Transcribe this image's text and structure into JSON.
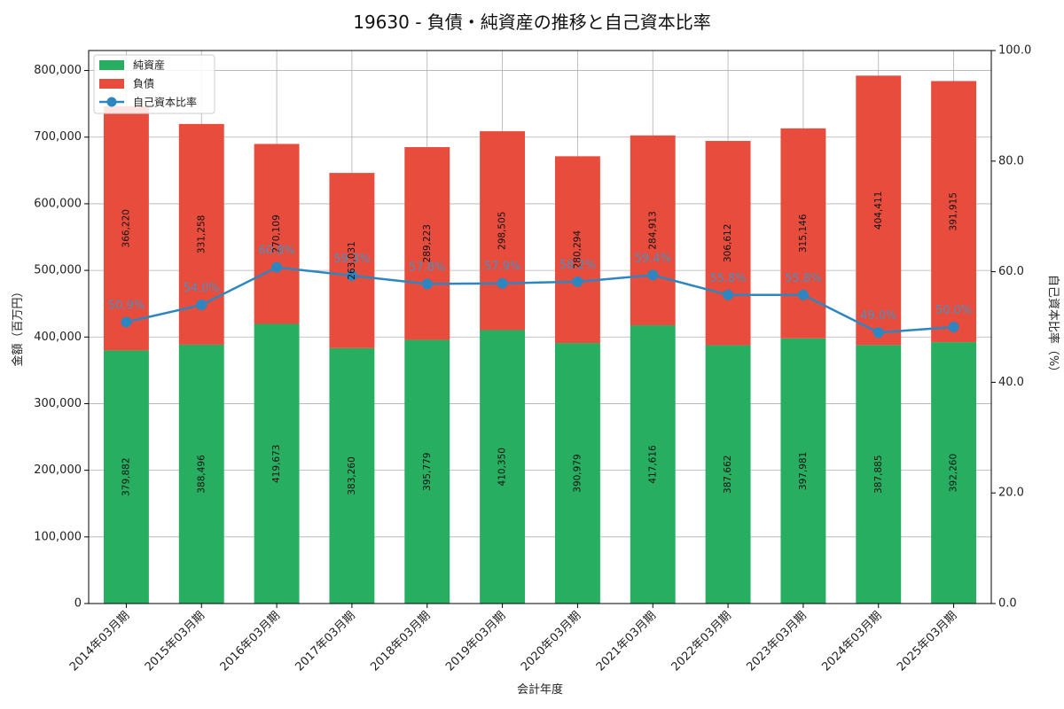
{
  "chart_data": {
    "type": "bar",
    "title": "19630 - 負債・純資産の推移と自己資本比率",
    "xlabel": "会計年度",
    "ylabel_left": "金額（百万円）",
    "ylabel_right": "自己資本比率（%）",
    "ylim_left": [
      0,
      830000
    ],
    "ylim_right": [
      0,
      100
    ],
    "yticks_left": [
      0,
      100000,
      200000,
      300000,
      400000,
      500000,
      600000,
      700000,
      800000
    ],
    "ytick_labels_left": [
      "0",
      "100,000",
      "200,000",
      "300,000",
      "400,000",
      "500,000",
      "600,000",
      "700,000",
      "800,000"
    ],
    "yticks_right": [
      0,
      20,
      40,
      60,
      80,
      100
    ],
    "ytick_labels_right": [
      "0.0",
      "20.0",
      "40.0",
      "60.0",
      "80.0",
      "100.0"
    ],
    "grid": true,
    "legend_position": "top-left",
    "categories": [
      "2014年03月期",
      "2015年03月期",
      "2016年03月期",
      "2017年03月期",
      "2018年03月期",
      "2019年03月期",
      "2020年03月期",
      "2021年03月期",
      "2022年03月期",
      "2023年03月期",
      "2024年03月期",
      "2025年03月期"
    ],
    "series": [
      {
        "name": "純資産",
        "kind": "stacked-bar",
        "color": "#27ae60",
        "values": [
          379882,
          388496,
          419673,
          383260,
          395779,
          410350,
          390979,
          417616,
          387662,
          397981,
          387885,
          392260
        ],
        "labels": [
          "379,882",
          "388,496",
          "419,673",
          "383,260",
          "395,779",
          "410,350",
          "390,979",
          "417,616",
          "387,662",
          "397,981",
          "387,885",
          "392,260"
        ]
      },
      {
        "name": "負債",
        "kind": "stacked-bar",
        "color": "#e74c3c",
        "values": [
          366220,
          331258,
          270109,
          263031,
          289223,
          298505,
          280294,
          284913,
          306612,
          315146,
          404411,
          391915
        ],
        "labels": [
          "366,220",
          "331,258",
          "270,109",
          "263,031",
          "289,223",
          "298,505",
          "280,294",
          "284,913",
          "306,612",
          "315,146",
          "404,411",
          "391,915"
        ]
      },
      {
        "name": "自己資本比率",
        "kind": "line",
        "axis": "right",
        "color": "#2e86c1",
        "values": [
          50.9,
          54.0,
          60.8,
          59.3,
          57.8,
          57.9,
          58.2,
          59.4,
          55.8,
          55.8,
          49.0,
          50.0
        ],
        "labels": [
          "50.9%",
          "54.0%",
          "60.8%",
          "59.3%",
          "57.8%",
          "57.9%",
          "58.2%",
          "59.4%",
          "55.8%",
          "55.8%",
          "49.0%",
          "50.0%"
        ]
      }
    ]
  }
}
